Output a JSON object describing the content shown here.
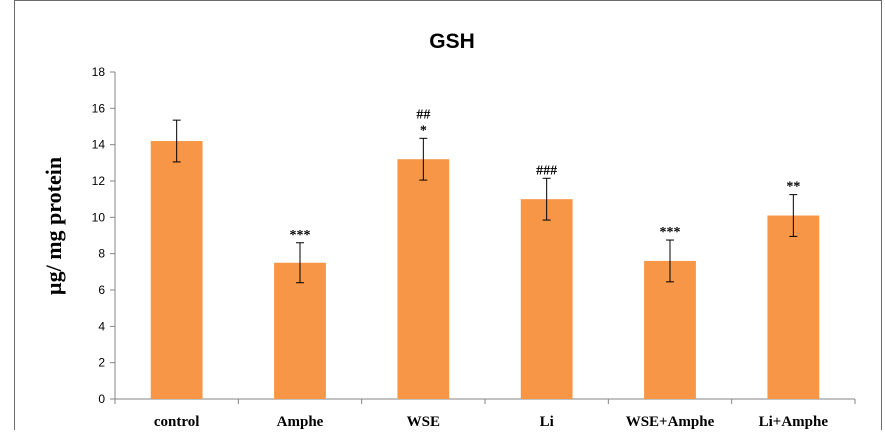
{
  "chart_data": {
    "type": "bar",
    "title": "GSH",
    "xlabel": "",
    "ylabel": "µg/ mg protein",
    "ylim": [
      0,
      18
    ],
    "yticks": [
      "0",
      "2",
      "4",
      "6",
      "8",
      "10",
      "12",
      "14",
      "16",
      "18"
    ],
    "ytick_values": [
      0,
      2,
      4,
      6,
      8,
      10,
      12,
      14,
      16,
      18
    ],
    "categories": [
      "control",
      "Amphe",
      "WSE",
      "Li",
      "WSE+Amphe",
      "Li+Amphe"
    ],
    "values": [
      14.2,
      7.5,
      13.2,
      11.0,
      7.6,
      10.1
    ],
    "errors": [
      1.15,
      1.1,
      1.15,
      1.15,
      1.15,
      1.15
    ],
    "significance": [
      [],
      [
        "***"
      ],
      [
        "##",
        "*"
      ],
      [
        "###"
      ],
      [
        "***"
      ],
      [
        "**"
      ]
    ],
    "bar_color": "#f79646",
    "grid": false,
    "legend": "none"
  }
}
